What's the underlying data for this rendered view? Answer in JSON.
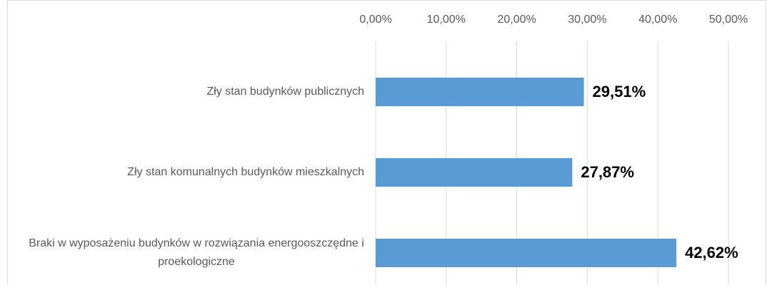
{
  "chart_data": {
    "type": "bar",
    "orientation": "horizontal",
    "categories": [
      "Zły stan budynków publicznych",
      "Zły stan komunalnych budynków mieszkalnych",
      "Braki w wyposażeniu budynków w rozwiązania energooszczędne i proekologiczne"
    ],
    "values": [
      29.51,
      27.87,
      42.62
    ],
    "value_labels": [
      "29,51%",
      "27,87%",
      "42,62%"
    ],
    "color": "#5b9bd5",
    "xlim": [
      0,
      50
    ],
    "xticks": [
      {
        "value": 0,
        "label": "0,00%"
      },
      {
        "value": 10,
        "label": "10,00%"
      },
      {
        "value": 20,
        "label": "20,00%"
      },
      {
        "value": 30,
        "label": "30,00%"
      },
      {
        "value": 40,
        "label": "40,00%"
      },
      {
        "value": 50,
        "label": "50,00%"
      }
    ],
    "grid": true
  }
}
